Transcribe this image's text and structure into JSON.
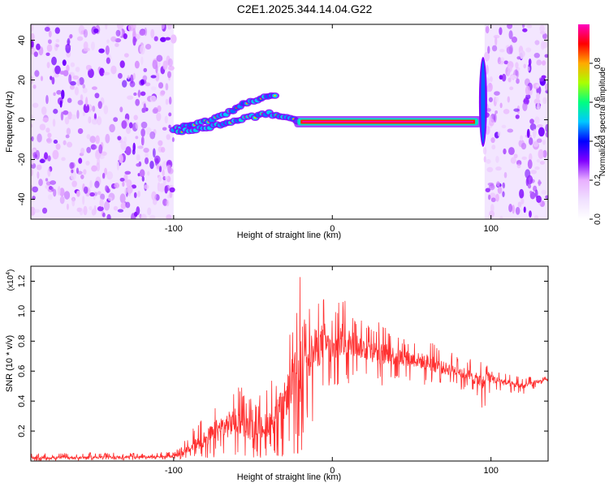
{
  "chart_data": [
    {
      "type": "heatmap",
      "title": "C2E1.2025.344.14.04.G22",
      "xlabel": "Height of straight line (km)",
      "ylabel": "Frequency (Hz)",
      "xlim": [
        -190,
        136
      ],
      "ylim": [
        -50,
        48
      ],
      "x_ticks": [
        -100,
        0,
        100
      ],
      "x_tick_labels": [
        "-100",
        "0",
        "100"
      ],
      "y_ticks": [
        -40,
        -20,
        0,
        20,
        40
      ],
      "y_tick_labels": [
        "-40",
        "-20",
        "0",
        "20",
        "40"
      ],
      "grid": false,
      "noise_regions_km": [
        [
          -190,
          -100
        ],
        [
          96,
          136
        ]
      ],
      "features": [
        {
          "name": "upper-ascending-streak",
          "x": [
            -100,
            -75,
            -55,
            -35
          ],
          "y": [
            -5,
            0,
            8,
            13
          ],
          "intensity": 0.4
        },
        {
          "name": "lower-arc",
          "x": [
            -97,
            -80,
            -60,
            -40,
            -30,
            -20
          ],
          "y": [
            -6,
            -4,
            0,
            3,
            2,
            -2
          ],
          "intensity": 0.5
        },
        {
          "name": "steady-band",
          "x": [
            -22,
            92
          ],
          "y": [
            -1,
            -1
          ],
          "intensity": 1.0
        },
        {
          "name": "edge-spike",
          "x": [
            95,
            95
          ],
          "y": [
            -12,
            30
          ],
          "intensity": 0.6
        }
      ],
      "colorbar": {
        "label": "Normalized spectral amplitude",
        "range": [
          0,
          1
        ],
        "ticks": [
          0.0,
          0.2,
          0.4,
          0.6,
          0.8
        ],
        "tick_labels": [
          "0.0",
          "0.2",
          "0.4",
          "0.6",
          "0.8"
        ],
        "colormap": [
          "#ffffff",
          "#f0e0ff",
          "#e8b0ff",
          "#8000ff",
          "#0000ff",
          "#00c8ff",
          "#00ff80",
          "#aaff00",
          "#ffaa00",
          "#ff0000",
          "#ff00c0"
        ]
      }
    },
    {
      "type": "line",
      "title": "",
      "xlabel": "Height of straight line (km)",
      "ylabel": "SNR (10 * v/v)",
      "y_scale_label": "(x10",
      "y_scale_exponent": "4",
      "xlim": [
        -190,
        136
      ],
      "ylim": [
        0,
        1.3
      ],
      "x_ticks": [
        -100,
        0,
        100
      ],
      "x_tick_labels": [
        "-100",
        "0",
        "100"
      ],
      "y_ticks": [
        0.2,
        0.4,
        0.6,
        0.8,
        1.0,
        1.2
      ],
      "y_tick_labels": [
        "0.2",
        "0.4",
        "0.6",
        "0.8",
        "1.0",
        "1.2"
      ],
      "grid": false,
      "line_color": "#ff3030",
      "series": [
        {
          "name": "SNR",
          "x": [
            -190,
            -100,
            -95,
            -90,
            -80,
            -70,
            -60,
            -50,
            -40,
            -35,
            -30,
            -25,
            -20,
            -17,
            -14,
            -10,
            -5,
            0,
            5,
            10,
            20,
            30,
            40,
            50,
            60,
            70,
            80,
            90,
            95,
            97,
            100,
            110,
            120,
            130,
            136
          ],
          "y": [
            0.02,
            0.03,
            0.05,
            0.08,
            0.15,
            0.22,
            0.27,
            0.2,
            0.25,
            0.3,
            0.4,
            0.55,
            0.6,
            0.85,
            0.7,
            0.75,
            0.8,
            0.72,
            0.8,
            0.8,
            0.75,
            0.72,
            0.7,
            0.68,
            0.66,
            0.62,
            0.6,
            0.55,
            0.52,
            0.6,
            0.55,
            0.52,
            0.5,
            0.53,
            0.54
          ],
          "peak_envelope": [
            0.05,
            0.06,
            0.1,
            0.2,
            0.35,
            0.5,
            0.54,
            0.4,
            0.5,
            0.62,
            0.75,
            0.9,
            1.28,
            1.22,
            1.05,
            1.05,
            1.1,
            0.95,
            1.18,
            1.0,
            0.95,
            0.93,
            0.85,
            0.8,
            0.82,
            0.75,
            0.7,
            0.68,
            0.66,
            0.72,
            0.62,
            0.58,
            0.56,
            0.57,
            0.57
          ],
          "trough_envelope": [
            0.0,
            0.01,
            0.01,
            0.02,
            0.02,
            0.02,
            0.03,
            0.02,
            0.02,
            0.02,
            0.03,
            0.04,
            0.05,
            0.08,
            0.15,
            0.25,
            0.35,
            0.5,
            0.45,
            0.5,
            0.52,
            0.5,
            0.5,
            0.52,
            0.5,
            0.5,
            0.48,
            0.45,
            0.3,
            0.4,
            0.45,
            0.46,
            0.44,
            0.5,
            0.52
          ]
        }
      ]
    }
  ]
}
